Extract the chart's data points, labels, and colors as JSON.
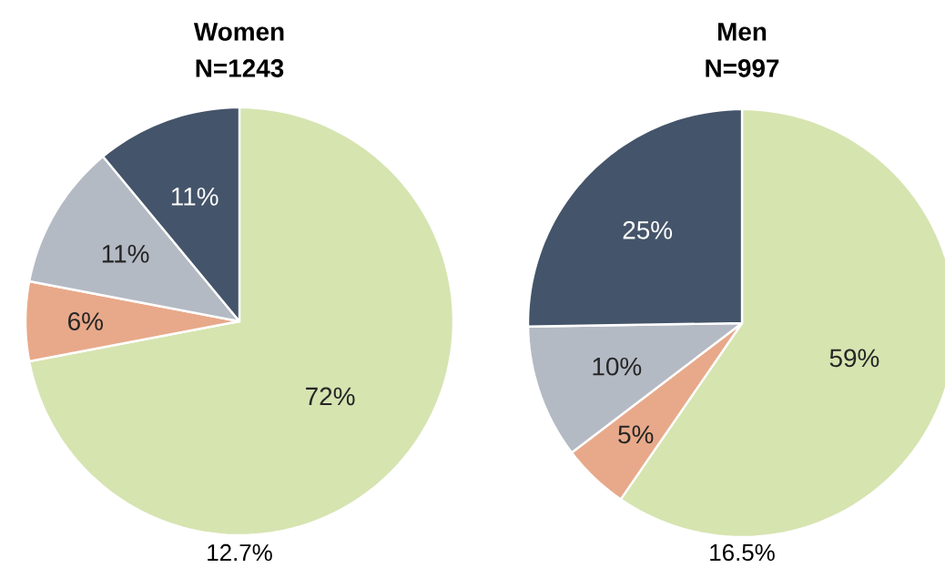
{
  "chart_data": [
    {
      "type": "pie",
      "title": "Women",
      "subtitle": "N=1243",
      "categories": [
        null,
        null,
        null,
        null
      ],
      "values": [
        72,
        6,
        11,
        11
      ],
      "colors": [
        "#d6e4b0",
        "#e8a98a",
        "#b4bac4",
        "#44546a"
      ],
      "value_labels": [
        "72%",
        "6%",
        "11%",
        "11%"
      ],
      "annotations": [
        "12.7%"
      ]
    },
    {
      "type": "pie",
      "title": "Men",
      "subtitle": "N=997",
      "categories": [
        null,
        null,
        null,
        null
      ],
      "values": [
        59,
        5,
        10,
        25
      ],
      "colors": [
        "#d6e4b0",
        "#e8a98a",
        "#b4bac4",
        "#44546a"
      ],
      "value_labels": [
        "59%",
        "5%",
        "10%",
        "25%"
      ],
      "annotations": [
        "16.5%"
      ]
    }
  ]
}
